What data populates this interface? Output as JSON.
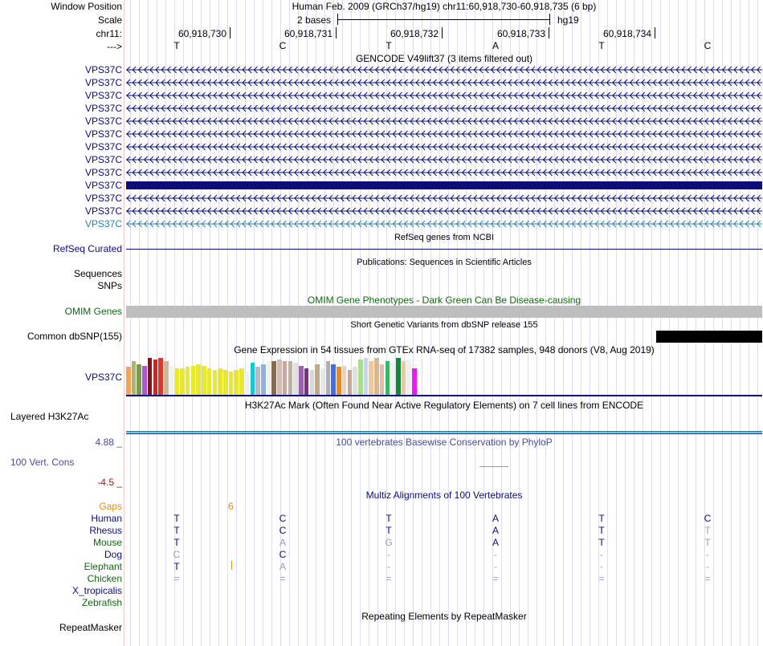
{
  "header": {
    "window_position_label": "Window Position",
    "title": "Human Feb. 2009 (GRCh37/hg19)   chr11:60,918,730-60,918,735 (6 bp)",
    "scale_label": "Scale",
    "scale_text": "2 bases",
    "assembly": "hg19",
    "chrom_label": "chr11:",
    "strand_label": "--->",
    "positions": [
      "60,918,730",
      "60,918,731",
      "60,918,732",
      "60,918,733",
      "60,918,734"
    ],
    "bases": [
      "T",
      "C",
      "T",
      "A",
      "T",
      "C"
    ]
  },
  "gencode": {
    "title": "GENCODE V49lift37 (3 items filtered out)",
    "labels": [
      "VPS37C",
      "VPS37C",
      "VPS37C",
      "VPS37C",
      "VPS37C",
      "VPS37C",
      "VPS37C",
      "VPS37C",
      "VPS37C",
      "VPS37C",
      "VPS37C",
      "VPS37C",
      "VPS37C"
    ],
    "thick_row": 9,
    "colors": {
      "normal": "#0c0c78",
      "last": "#2c7fa8"
    }
  },
  "refseq": {
    "title": "RefSeq genes from NCBI",
    "label": "RefSeq Curated"
  },
  "pubs": {
    "title": "Publications: Sequences in Scientific Articles",
    "label1": "Sequences",
    "label2": "SNPs"
  },
  "omim": {
    "title": "OMIM Gene Phenotypes - Dark Green Can Be Disease-causing",
    "label": "OMIM Genes",
    "bar_color": "#bebebe"
  },
  "dbsnp": {
    "title": "Short Genetic Variants from dbSNP release 155",
    "label": "Common dbSNP(155)"
  },
  "gtex": {
    "title": "Gene Expression in 54 tissues from GTEx RNA-seq of 17382 samples, 948 donors (V8, Aug 2019)",
    "label": "VPS37C",
    "values": [
      36,
      44,
      40,
      38,
      48,
      46,
      48,
      44,
      38,
      34,
      34,
      36,
      38,
      40,
      38,
      34,
      32,
      34,
      32,
      30,
      32,
      34,
      30,
      42,
      36,
      40,
      44,
      44,
      46,
      44,
      44,
      42,
      38,
      34,
      32,
      40,
      34,
      44,
      40,
      36,
      38,
      32,
      36,
      46,
      48,
      44,
      48,
      40,
      44,
      44,
      48,
      44,
      46,
      34
    ],
    "colors": [
      "#f2a45a",
      "#b0b07c",
      "#7a9a50",
      "#a85ad0",
      "#7a1a1a",
      "#e02020",
      "#d83a2e",
      "#cfb898",
      "#f0f0f0",
      "#e8e832",
      "#e8e832",
      "#e8e832",
      "#e8e832",
      "#e8e832",
      "#e8e832",
      "#e8e832",
      "#e8e832",
      "#e8e832",
      "#e8e832",
      "#e8e832",
      "#e8e832",
      "#e8e832",
      "#f0f0f0",
      "#14c8d8",
      "#b8b8c8",
      "#90b0e0",
      "#f0f0f0",
      "#8a6a4a",
      "#d8b8b0",
      "#c8a8a0",
      "#c0b0a0",
      "#e0e0e0",
      "#a060b0",
      "#8a2a8a",
      "#d8d8d8",
      "#c0a888",
      "#e8e8e8",
      "#b0b0b0",
      "#4a6ae0",
      "#e08a2a",
      "#e8d0c8",
      "#c8a890",
      "#e0e0e0",
      "#a8e088",
      "#c0d8f0",
      "#f0c8a0",
      "#d8b890",
      "#e8b8a8",
      "#3ab868",
      "#f0f0f0",
      "#108a38",
      "#e8c8a8",
      "#f0f0f0",
      "#f018f0"
    ]
  },
  "h3k27ac": {
    "title": "H3K27Ac Mark (Often Found Near Active Regulatory Elements) on 7 cell lines from ENCODE",
    "label": "Layered H3K27Ac"
  },
  "phylop": {
    "title": "100 vertebrates Basewise Conservation by PhyloP",
    "label": "100 Vert. Cons",
    "max": "4.88 _",
    "min": "-4.5 _"
  },
  "multiz": {
    "title": "Multiz Alignments of 100 Vertebrates",
    "gaps_label": "Gaps",
    "gaps_value": "6",
    "species": [
      {
        "name": "Human",
        "color": "#0c0c78",
        "bases": [
          "T",
          "C",
          "T",
          "A",
          "T",
          "C"
        ],
        "basecolors": [
          "#0c0c78",
          "#0c0c78",
          "#0c0c78",
          "#0c0c78",
          "#0c0c78",
          "#0c0c78"
        ]
      },
      {
        "name": "Rhesus",
        "color": "#0c0c78",
        "bases": [
          "T",
          "C",
          "T",
          "A",
          "T",
          "T"
        ],
        "basecolors": [
          "#0c0c78",
          "#0c0c78",
          "#0c0c78",
          "#0c0c78",
          "#0c0c78",
          "#9898c8"
        ]
      },
      {
        "name": "Mouse",
        "color": "#106810",
        "bases": [
          "T",
          "A",
          "G",
          "A",
          "T",
          "T"
        ],
        "basecolors": [
          "#0c0c78",
          "#9898c8",
          "#9898c8",
          "#0c0c78",
          "#0c0c78",
          "#9898c8"
        ]
      },
      {
        "name": "Dog",
        "color": "#0c0c78",
        "bases": [
          "C",
          "C",
          "-",
          "-",
          "-",
          "-"
        ],
        "basecolors": [
          "#9898c8",
          "#0c0c78",
          "#9898c8",
          "#9898c8",
          "#9898c8",
          "#9898c8"
        ]
      },
      {
        "name": "Elephant",
        "color": "#106810",
        "bases": [
          "T",
          "A",
          "-",
          "-",
          "-",
          "-"
        ],
        "basecolors": [
          "#0c0c78",
          "#9898c8",
          "#9898c8",
          "#9898c8",
          "#9898c8",
          "#9898c8"
        ]
      },
      {
        "name": "Chicken",
        "color": "#106810",
        "bases": [
          "=",
          "=",
          "=",
          "=",
          "=",
          "="
        ],
        "basecolors": [
          "#9898c8",
          "#9898c8",
          "#9898c8",
          "#9898c8",
          "#9898c8",
          "#9898c8"
        ]
      },
      {
        "name": "X_tropicalis",
        "color": "#0c0c78",
        "bases": [
          "",
          "",
          "",
          "",
          "",
          ""
        ],
        "basecolors": [
          "#0c0c78",
          "#0c0c78",
          "#0c0c78",
          "#0c0c78",
          "#0c0c78",
          "#0c0c78"
        ]
      },
      {
        "name": "Zebrafish",
        "color": "#106810",
        "bases": [
          "",
          "",
          "",
          "",
          "",
          ""
        ],
        "basecolors": [
          "#0c0c78",
          "#0c0c78",
          "#0c0c78",
          "#0c0c78",
          "#0c0c78",
          "#0c0c78"
        ]
      }
    ]
  },
  "repeatmasker": {
    "title": "Repeating Elements by RepeatMasker",
    "label": "RepeatMasker"
  }
}
